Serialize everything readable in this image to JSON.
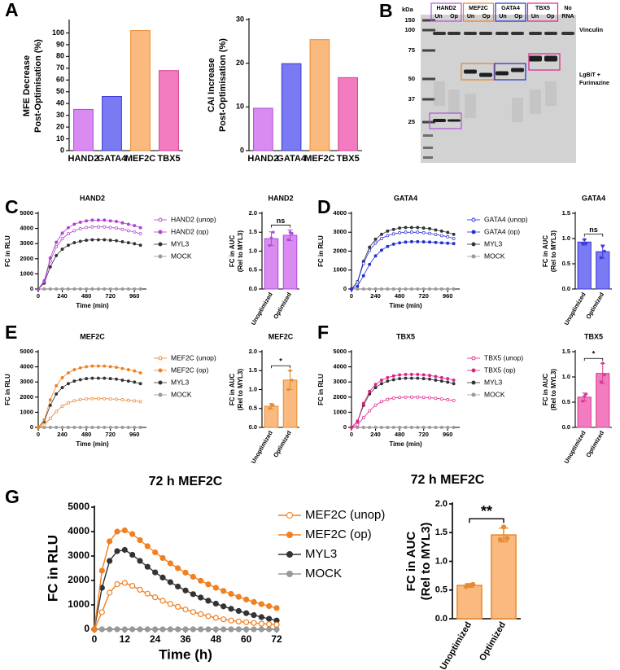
{
  "panels": [
    "A",
    "B",
    "C",
    "D",
    "E",
    "F",
    "G"
  ],
  "blot": {
    "kda_label": "kDa",
    "markers": [
      150,
      100,
      75,
      50,
      37,
      25
    ],
    "lanes": [
      {
        "name": "HAND2",
        "sub": [
          "Un",
          "Op"
        ],
        "color": "#b050d8"
      },
      {
        "name": "MEF2C",
        "sub": [
          "Un",
          "Op"
        ],
        "color": "#f08020"
      },
      {
        "name": "GATA4",
        "sub": [
          "Un",
          "Op"
        ],
        "color": "#2030c8"
      },
      {
        "name": "TBX5",
        "sub": [
          "Un",
          "Op"
        ],
        "color": "#e0208a"
      }
    ],
    "no_rna": [
      "No",
      "RNA"
    ],
    "vinculin": "Vinculin",
    "lgbit": [
      "LgBiT +",
      "Furimazine"
    ]
  },
  "chart_data": [
    {
      "type": "bar",
      "ylabel": [
        "MFE Decrease",
        "Post-Optimisation (%)"
      ],
      "categories": [
        "HAND2",
        "GATA4",
        "MEF2C",
        "TBX5"
      ],
      "values": [
        35,
        46,
        102,
        68
      ],
      "colors": [
        "#d98bf2",
        "#7a7af2",
        "#f9b97f",
        "#f27cbf"
      ],
      "edgecolors": [
        "#b04ad8",
        "#3a3ad8",
        "#e88a30",
        "#d83a8e"
      ],
      "ylim": [
        0,
        110
      ],
      "yticks": [
        0,
        10,
        20,
        30,
        40,
        50,
        60,
        70,
        80,
        90,
        100
      ]
    },
    {
      "type": "bar",
      "ylabel": [
        "CAI Increase",
        "Post-Optimisation (%)"
      ],
      "categories": [
        "HAND2",
        "GATA4",
        "MEF2C",
        "TBX5"
      ],
      "values": [
        9.7,
        19.9,
        25.4,
        16.7
      ],
      "colors": [
        "#d98bf2",
        "#7a7af2",
        "#f9b97f",
        "#f27cbf"
      ],
      "edgecolors": [
        "#b04ad8",
        "#3a3ad8",
        "#e88a30",
        "#d83a8e"
      ],
      "ylim": [
        0,
        30
      ],
      "yticks": [
        0,
        10,
        20,
        30
      ]
    },
    {
      "type": "line",
      "title": "HAND2",
      "xlabel": "Time (min)",
      "ylabel": "FC in RLU",
      "x": [
        0,
        60,
        120,
        180,
        240,
        300,
        360,
        420,
        480,
        540,
        600,
        660,
        720,
        780,
        840,
        900,
        960,
        1020
      ],
      "xlim": [
        0,
        1080
      ],
      "xticks": [
        0,
        240,
        480,
        720,
        960
      ],
      "ylim": [
        0,
        5000
      ],
      "yticks": [
        0,
        1000,
        2000,
        3000,
        4000,
        5000
      ],
      "series": [
        {
          "name": "HAND2 (unop)",
          "color": "#b040d0",
          "marker": "open",
          "values": [
            0,
            490,
            1850,
            2790,
            3320,
            3650,
            3850,
            3980,
            4060,
            4100,
            4100,
            4100,
            4060,
            4020,
            3940,
            3850,
            3770,
            3650
          ]
        },
        {
          "name": "HAND2 (op)",
          "color": "#b040d0",
          "marker": "filled",
          "values": [
            0,
            550,
            2050,
            3090,
            3690,
            4050,
            4280,
            4410,
            4500,
            4550,
            4550,
            4550,
            4500,
            4460,
            4370,
            4280,
            4190,
            4050
          ]
        },
        {
          "name": "MYL3",
          "color": "#333333",
          "marker": "filled",
          "values": [
            0,
            390,
            1460,
            2210,
            2630,
            2890,
            3060,
            3150,
            3220,
            3250,
            3250,
            3250,
            3220,
            3190,
            3120,
            3060,
            2990,
            2890
          ]
        },
        {
          "name": "MOCK",
          "color": "#999999",
          "marker": "filled",
          "values": [
            0,
            0,
            0,
            0,
            0,
            0,
            0,
            0,
            0,
            0,
            0,
            0,
            0,
            0,
            0,
            0,
            0,
            0
          ]
        }
      ]
    },
    {
      "type": "bar",
      "title": "HAND2",
      "ylabel": [
        "FC in AUC",
        "(Rel to MYL3)"
      ],
      "categories": [
        "Unoptimized",
        "Optimized"
      ],
      "values": [
        1.33,
        1.42
      ],
      "errors": [
        0.18,
        0.14
      ],
      "points": [
        [
          1.15,
          1.35,
          1.5
        ],
        [
          1.3,
          1.5,
          1.47
        ]
      ],
      "annotation": "ns",
      "color": "#d98bf2",
      "edgecolor": "#b04ad8",
      "ylim": [
        0,
        2
      ],
      "yticks": [
        {
          "value": 0,
          "label": "0.0"
        },
        0.5,
        {
          "value": 1,
          "label": "1.0"
        },
        1.5,
        {
          "value": 2,
          "label": "2.0"
        }
      ]
    },
    {
      "type": "line",
      "title": "GATA4",
      "xlabel": "Time (min)",
      "ylabel": "FC in RLU",
      "x": [
        0,
        60,
        120,
        180,
        240,
        300,
        360,
        420,
        480,
        540,
        600,
        660,
        720,
        780,
        840,
        900,
        960,
        1020
      ],
      "xlim": [
        0,
        1080
      ],
      "xticks": [
        0,
        240,
        480,
        720,
        960
      ],
      "ylim": [
        0,
        4000
      ],
      "yticks": [
        0,
        1000,
        2000,
        3000,
        4000
      ],
      "series": [
        {
          "name": "GATA4 (unop)",
          "color": "#2030d0",
          "marker": "open",
          "values": [
            0,
            360,
            1350,
            2040,
            2430,
            2670,
            2820,
            2910,
            2970,
            3000,
            3000,
            3000,
            2970,
            2940,
            2880,
            2820,
            2760,
            2670
          ]
        },
        {
          "name": "GATA4 (op)",
          "color": "#2030d0",
          "marker": "filled",
          "values": [
            0,
            150,
            700,
            1300,
            1750,
            2050,
            2250,
            2370,
            2440,
            2480,
            2500,
            2500,
            2490,
            2480,
            2460,
            2440,
            2420,
            2400
          ]
        },
        {
          "name": "MYL3",
          "color": "#333333",
          "marker": "filled",
          "values": [
            0,
            390,
            1460,
            2210,
            2630,
            2890,
            3060,
            3150,
            3220,
            3250,
            3250,
            3250,
            3220,
            3190,
            3120,
            3060,
            2990,
            2890
          ]
        },
        {
          "name": "MOCK",
          "color": "#999999",
          "marker": "filled",
          "values": [
            0,
            0,
            0,
            0,
            0,
            0,
            0,
            0,
            0,
            0,
            0,
            0,
            0,
            0,
            0,
            0,
            0,
            0
          ]
        }
      ]
    },
    {
      "type": "bar",
      "title": "GATA4",
      "ylabel": [
        "FC in AUC",
        "(Rel to MYL3)"
      ],
      "categories": [
        "Unoptimized",
        "Optimized"
      ],
      "values": [
        0.93,
        0.74
      ],
      "errors": [
        0.06,
        0.13
      ],
      "points": [
        [
          0.9,
          0.98,
          0.91
        ],
        [
          0.62,
          0.85,
          0.75
        ]
      ],
      "annotation": "ns",
      "color": "#7a7af2",
      "edgecolor": "#3a3ad8",
      "ylim": [
        0,
        1.5
      ],
      "yticks": [
        {
          "value": 0,
          "label": "0.0"
        },
        0.5,
        {
          "value": 1,
          "label": "1.0"
        },
        1.5
      ]
    },
    {
      "type": "line",
      "title": "MEF2C",
      "xlabel": "Time (min)",
      "ylabel": "FC in RLU",
      "x": [
        0,
        60,
        120,
        180,
        240,
        300,
        360,
        420,
        480,
        540,
        600,
        660,
        720,
        780,
        840,
        900,
        960,
        1020
      ],
      "xlim": [
        0,
        1080
      ],
      "xticks": [
        0,
        240,
        480,
        720,
        960
      ],
      "ylim": [
        0,
        5000
      ],
      "yticks": [
        0,
        1000,
        2000,
        3000,
        4000,
        5000
      ],
      "series": [
        {
          "name": "MEF2C (unop)",
          "color": "#f08020",
          "marker": "open",
          "values": [
            0,
            150,
            600,
            1050,
            1400,
            1620,
            1760,
            1840,
            1880,
            1900,
            1900,
            1900,
            1880,
            1860,
            1830,
            1790,
            1750,
            1700
          ]
        },
        {
          "name": "MEF2C (op)",
          "color": "#f08020",
          "marker": "filled",
          "values": [
            0,
            490,
            1820,
            2750,
            3280,
            3600,
            3810,
            3930,
            4010,
            4050,
            4050,
            4050,
            4010,
            3970,
            3890,
            3810,
            3730,
            3600
          ]
        },
        {
          "name": "MYL3",
          "color": "#333333",
          "marker": "filled",
          "values": [
            0,
            390,
            1460,
            2210,
            2630,
            2890,
            3060,
            3150,
            3220,
            3250,
            3250,
            3250,
            3220,
            3190,
            3120,
            3060,
            2990,
            2890
          ]
        },
        {
          "name": "MOCK",
          "color": "#999999",
          "marker": "filled",
          "values": [
            0,
            0,
            0,
            0,
            0,
            0,
            0,
            0,
            0,
            0,
            0,
            0,
            0,
            0,
            0,
            0,
            0,
            0
          ]
        }
      ]
    },
    {
      "type": "bar",
      "title": "MEF2C",
      "ylabel": [
        "FC in AUC",
        "(Rel to MYL3)"
      ],
      "categories": [
        "Unoptimized",
        "Optimized"
      ],
      "values": [
        0.56,
        1.25
      ],
      "errors": [
        0.07,
        0.25
      ],
      "points": [
        [
          0.5,
          0.6,
          0.58
        ],
        [
          1.0,
          1.5,
          1.25
        ]
      ],
      "annotation": "*",
      "color": "#f9b97f",
      "edgecolor": "#e88a30",
      "ylim": [
        0,
        2
      ],
      "yticks": [
        {
          "value": 0,
          "label": "0.0"
        },
        0.5,
        {
          "value": 1,
          "label": "1.0"
        },
        1.5,
        {
          "value": 2,
          "label": "2.0"
        }
      ]
    },
    {
      "type": "line",
      "title": "TBX5",
      "xlabel": "Time (min)",
      "ylabel": "FC in RLU",
      "x": [
        0,
        60,
        120,
        180,
        240,
        300,
        360,
        420,
        480,
        540,
        600,
        660,
        720,
        780,
        840,
        900,
        960,
        1020
      ],
      "xlim": [
        0,
        1080
      ],
      "xticks": [
        0,
        240,
        480,
        720,
        960
      ],
      "ylim": [
        0,
        5000
      ],
      "yticks": [
        0,
        1000,
        2000,
        3000,
        4000,
        5000
      ],
      "series": [
        {
          "name": "TBX5 (unop)",
          "color": "#e0208a",
          "marker": "open",
          "values": [
            0,
            160,
            640,
            1100,
            1470,
            1700,
            1850,
            1940,
            1980,
            2000,
            2000,
            2000,
            1980,
            1960,
            1920,
            1880,
            1830,
            1780
          ]
        },
        {
          "name": "TBX5 (op)",
          "color": "#e0208a",
          "marker": "filled",
          "values": [
            0,
            420,
            1580,
            2380,
            2840,
            3120,
            3290,
            3400,
            3470,
            3500,
            3500,
            3500,
            3470,
            3430,
            3360,
            3290,
            3220,
            3120
          ]
        },
        {
          "name": "MYL3",
          "color": "#333333",
          "marker": "filled",
          "values": [
            0,
            390,
            1460,
            2210,
            2630,
            2890,
            3060,
            3150,
            3220,
            3250,
            3250,
            3250,
            3220,
            3190,
            3120,
            3060,
            2990,
            2890
          ]
        },
        {
          "name": "MOCK",
          "color": "#999999",
          "marker": "filled",
          "values": [
            0,
            0,
            0,
            0,
            0,
            0,
            0,
            0,
            0,
            0,
            0,
            0,
            0,
            0,
            0,
            0,
            0,
            0
          ]
        }
      ]
    },
    {
      "type": "bar",
      "title": "TBX5",
      "ylabel": [
        "FC in AUC",
        "(Rel to MYL3)"
      ],
      "categories": [
        "Unoptimized",
        "Optimized"
      ],
      "values": [
        0.6,
        1.07
      ],
      "errors": [
        0.08,
        0.2
      ],
      "points": [
        [
          0.52,
          0.62,
          0.66
        ],
        [
          0.9,
          1.27,
          1.04
        ]
      ],
      "annotation": "*",
      "color": "#f27cbf",
      "edgecolor": "#d83a8e",
      "ylim": [
        0,
        1.5
      ],
      "yticks": [
        {
          "value": 0,
          "label": "0.0"
        },
        0.5,
        {
          "value": 1,
          "label": "1.0"
        },
        1.5
      ]
    },
    {
      "type": "line",
      "title": "72 h MEF2C",
      "xlabel": "Time (h)",
      "ylabel": "FC in RLU",
      "x": [
        0,
        3,
        6,
        9,
        12,
        15,
        18,
        21,
        24,
        27,
        30,
        33,
        36,
        39,
        42,
        45,
        48,
        51,
        54,
        57,
        60,
        63,
        66,
        69,
        72
      ],
      "xlim": [
        0,
        72
      ],
      "xticks": [
        0,
        12,
        24,
        36,
        48,
        60,
        72
      ],
      "ylim": [
        0,
        5000
      ],
      "yticks": [
        0,
        1000,
        2000,
        3000,
        4000,
        5000
      ],
      "series": [
        {
          "name": "MEF2C (unop)",
          "color": "#f08020",
          "marker": "open",
          "values": [
            0,
            700,
            1500,
            1850,
            1900,
            1780,
            1620,
            1460,
            1310,
            1170,
            1040,
            920,
            810,
            710,
            620,
            540,
            470,
            410,
            360,
            320,
            290,
            260,
            230,
            210,
            190
          ]
        },
        {
          "name": "MEF2C (op)",
          "color": "#f08020",
          "marker": "filled",
          "values": [
            0,
            2400,
            3600,
            4000,
            4050,
            3900,
            3650,
            3400,
            3150,
            2920,
            2700,
            2500,
            2320,
            2150,
            1990,
            1840,
            1700,
            1570,
            1450,
            1330,
            1220,
            1120,
            1030,
            950,
            870
          ]
        },
        {
          "name": "MYL3",
          "color": "#333333",
          "marker": "filled",
          "values": [
            0,
            1700,
            2800,
            3200,
            3250,
            3050,
            2800,
            2560,
            2330,
            2120,
            1930,
            1750,
            1590,
            1440,
            1300,
            1170,
            1050,
            940,
            840,
            750,
            660,
            580,
            500,
            430,
            360
          ]
        },
        {
          "name": "MOCK",
          "color": "#999999",
          "marker": "filled",
          "values": [
            0,
            0,
            0,
            0,
            0,
            0,
            0,
            0,
            0,
            0,
            0,
            0,
            0,
            0,
            0,
            0,
            0,
            0,
            0,
            0,
            0,
            0,
            0,
            0,
            0
          ]
        }
      ]
    },
    {
      "type": "bar",
      "title": "72 h MEF2C",
      "ylabel": [
        "FC in AUC",
        "(Rel to MYL3)"
      ],
      "categories": [
        "Unoptimized",
        "Optimized"
      ],
      "values": [
        0.58,
        1.46
      ],
      "errors": [
        0.03,
        0.12
      ],
      "points": [
        [
          0.56,
          0.58,
          0.6
        ],
        [
          1.38,
          1.6,
          1.4
        ]
      ],
      "annotation": "**",
      "color": "#f9b97f",
      "edgecolor": "#e88a30",
      "ylim": [
        0,
        2
      ],
      "yticks": [
        {
          "value": 0,
          "label": "0.0"
        },
        0.5,
        {
          "value": 1,
          "label": "1.0"
        },
        1.5,
        {
          "value": 2,
          "label": "2.0"
        }
      ]
    }
  ]
}
